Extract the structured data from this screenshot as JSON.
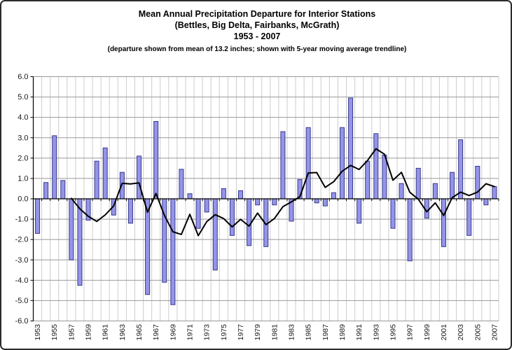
{
  "title": {
    "line1": "Mean Annual Precipitation Departure for Interior Stations",
    "line2": "(Bettles, Big Delta, Fairbanks, McGrath)",
    "line3": "1953 - 2007",
    "subtitle": "(departure shown from mean of 13.2 inches; shown with 5-year moving average trendline)"
  },
  "chart_data": {
    "type": "bar",
    "title": "Mean Annual Precipitation Departure for Interior Stations (Bettles, Big Delta, Fairbanks, McGrath) 1953 - 2007",
    "subtitle": "(departure shown from mean of 13.2 inches; shown with 5-year moving average trendline)",
    "xlabel": "",
    "ylabel": "",
    "ylim": [
      -6,
      6
    ],
    "ytick_step": 1.0,
    "ytick_labels": [
      "6.0",
      "5.0",
      "4.0",
      "3.0",
      "2.0",
      "1.0",
      "0.0",
      "-1.0",
      "-2.0",
      "-3.0",
      "-4.0",
      "-5.0",
      "-6.0"
    ],
    "xtick_labels": [
      "1953",
      "1955",
      "1957",
      "1959",
      "1961",
      "1963",
      "1965",
      "1967",
      "1969",
      "1971",
      "1973",
      "1975",
      "1977",
      "1979",
      "1981",
      "1983",
      "1985",
      "1987",
      "1989",
      "1991",
      "1993",
      "1995",
      "1997",
      "1999",
      "2001",
      "2003",
      "2005",
      "2007"
    ],
    "grid": {
      "horizontal": true,
      "vertical_per_year": true
    },
    "legend": "none",
    "categories": [
      1953,
      1954,
      1955,
      1956,
      1957,
      1958,
      1959,
      1960,
      1961,
      1962,
      1963,
      1964,
      1965,
      1966,
      1967,
      1968,
      1969,
      1970,
      1971,
      1972,
      1973,
      1974,
      1975,
      1976,
      1977,
      1978,
      1979,
      1980,
      1981,
      1982,
      1983,
      1984,
      1985,
      1986,
      1987,
      1988,
      1989,
      1990,
      1991,
      1992,
      1993,
      1994,
      1995,
      1996,
      1997,
      1998,
      1999,
      2000,
      2001,
      2002,
      2003,
      2004,
      2005,
      2006,
      2007
    ],
    "series": [
      {
        "name": "Annual precipitation departure (inches)",
        "type": "bar",
        "values": [
          -1.7,
          0.8,
          3.1,
          0.9,
          -3.0,
          -4.25,
          -1.05,
          1.85,
          2.5,
          -0.8,
          1.3,
          -1.2,
          2.1,
          -4.7,
          3.8,
          -4.1,
          -5.2,
          1.45,
          0.25,
          -1.45,
          -0.65,
          -3.5,
          0.5,
          -1.8,
          0.4,
          -2.3,
          -0.3,
          -2.35,
          -0.3,
          3.3,
          -1.1,
          0.95,
          3.5,
          -0.2,
          -0.35,
          0.3,
          3.5,
          4.95,
          -1.2,
          1.85,
          3.2,
          2.15,
          -1.45,
          0.75,
          -3.05,
          1.5,
          -0.95,
          0.75,
          -2.35,
          1.3,
          2.9,
          -1.8,
          1.6,
          -0.3,
          0.6
        ]
      },
      {
        "name": "5-year moving average trendline",
        "type": "line",
        "values": [
          null,
          null,
          null,
          null,
          0.02,
          -0.49,
          -0.86,
          -1.11,
          -0.79,
          -0.35,
          0.76,
          0.73,
          0.78,
          -0.66,
          0.26,
          -0.82,
          -1.62,
          -1.75,
          -0.76,
          -1.81,
          -1.12,
          -0.78,
          -0.97,
          -1.38,
          -1.01,
          -1.34,
          -0.7,
          -1.27,
          -0.97,
          -0.39,
          -0.15,
          0.1,
          1.27,
          1.29,
          0.56,
          0.84,
          1.35,
          1.64,
          1.44,
          1.88,
          2.46,
          2.19,
          0.91,
          1.3,
          0.32,
          -0.02,
          -0.64,
          -0.2,
          -0.82,
          0.05,
          0.33,
          0.16,
          0.33,
          0.74,
          0.6
        ]
      }
    ],
    "colors": {
      "bar_fill": "#9494E8",
      "bar_border": "#3A3A8C",
      "trendline": "#000000",
      "h_gridline": "#999999",
      "v_gridline": "#CCCCCC",
      "axis": "#000000",
      "tick_text": "#1a1a1a"
    }
  }
}
